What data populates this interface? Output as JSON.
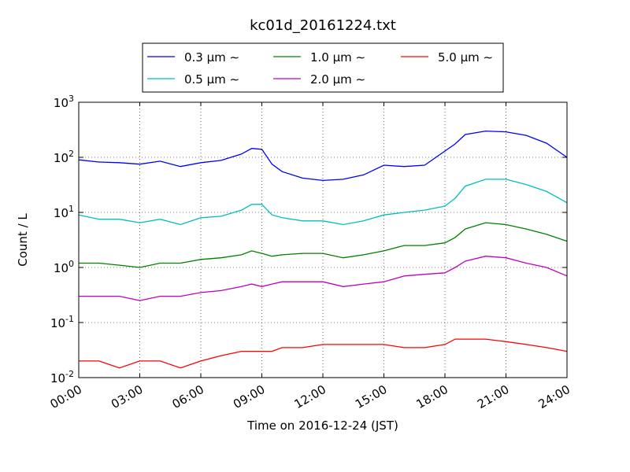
{
  "chart_data": {
    "type": "line",
    "title": "kc01d_20161224.txt",
    "xlabel": "Time on 2016-12-24 (JST)",
    "ylabel": "Count / L",
    "xlim": [
      "00:00",
      "24:00"
    ],
    "ylim": [
      0.01,
      1000
    ],
    "yscale": "log",
    "grid": true,
    "legend_position": "top-center-outside",
    "x_tick_labels": [
      "00:00",
      "03:00",
      "06:00",
      "09:00",
      "12:00",
      "15:00",
      "18:00",
      "21:00",
      "24:00"
    ],
    "y_tick_labels": [
      {
        "base": "10",
        "exp": "-2"
      },
      {
        "base": "10",
        "exp": "-1"
      },
      {
        "base": "10",
        "exp": "0"
      },
      {
        "base": "10",
        "exp": "1"
      },
      {
        "base": "10",
        "exp": "2"
      },
      {
        "base": "10",
        "exp": "3"
      }
    ],
    "x": [
      "00:00",
      "01:00",
      "02:00",
      "03:00",
      "04:00",
      "05:00",
      "06:00",
      "07:00",
      "08:00",
      "08:30",
      "09:00",
      "09:30",
      "10:00",
      "11:00",
      "12:00",
      "13:00",
      "14:00",
      "15:00",
      "16:00",
      "17:00",
      "18:00",
      "18:30",
      "19:00",
      "20:00",
      "21:00",
      "22:00",
      "23:00",
      "24:00"
    ],
    "series": [
      {
        "name": "0.3 μm ∼",
        "color": "#0000ff",
        "values": [
          90,
          82,
          80,
          75,
          85,
          68,
          80,
          88,
          115,
          145,
          140,
          75,
          55,
          42,
          38,
          40,
          48,
          72,
          68,
          72,
          130,
          175,
          260,
          300,
          290,
          250,
          180,
          100
        ]
      },
      {
        "name": "0.5 μm ∼",
        "color": "#00bfbf",
        "values": [
          9,
          7.5,
          7.5,
          6.5,
          7.5,
          6,
          8,
          8.5,
          11,
          14,
          14,
          9,
          8,
          7,
          7,
          6,
          7,
          9,
          10,
          11,
          13,
          18,
          30,
          40,
          40,
          32,
          24,
          15
        ]
      },
      {
        "name": "1.0 μm ∼",
        "color": "#008000",
        "values": [
          1.2,
          1.2,
          1.1,
          1.0,
          1.2,
          1.2,
          1.4,
          1.5,
          1.7,
          2.0,
          1.8,
          1.6,
          1.7,
          1.8,
          1.8,
          1.5,
          1.7,
          2.0,
          2.5,
          2.5,
          2.8,
          3.5,
          5.0,
          6.5,
          6.0,
          5.0,
          4.0,
          3.0
        ]
      },
      {
        "name": "2.0 μm ∼",
        "color": "#bf00bf",
        "values": [
          0.3,
          0.3,
          0.3,
          0.25,
          0.3,
          0.3,
          0.35,
          0.38,
          0.45,
          0.5,
          0.45,
          0.5,
          0.55,
          0.55,
          0.55,
          0.45,
          0.5,
          0.55,
          0.7,
          0.75,
          0.8,
          1.0,
          1.3,
          1.6,
          1.5,
          1.2,
          1.0,
          0.7
        ]
      },
      {
        "name": "5.0 μm ∼",
        "color": "#ff0000",
        "values": [
          0.02,
          0.02,
          0.015,
          0.02,
          0.02,
          0.015,
          0.02,
          0.025,
          0.03,
          0.03,
          0.03,
          0.03,
          0.035,
          0.035,
          0.04,
          0.04,
          0.04,
          0.04,
          0.035,
          0.035,
          0.04,
          0.05,
          0.05,
          0.05,
          0.045,
          0.04,
          0.035,
          0.03
        ]
      }
    ]
  }
}
